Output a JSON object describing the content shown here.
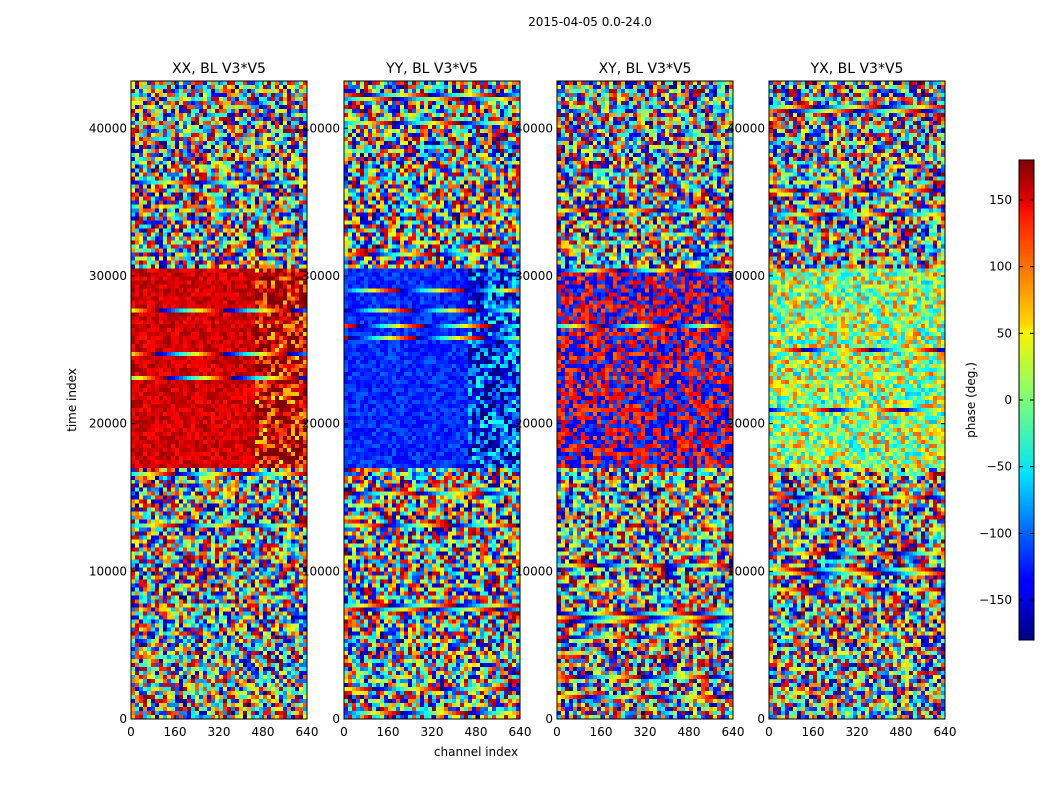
{
  "chart_data": {
    "type": "heatmap",
    "suptitle": "2015-04-05 0.0-24.0",
    "xlabel": "channel index",
    "ylabel": "time index",
    "xlim": [
      0,
      640
    ],
    "ylim": [
      0,
      43200
    ],
    "xticks": [
      0,
      160,
      320,
      480,
      640
    ],
    "xtick_labels": [
      "0",
      "160",
      "320",
      "480",
      "640"
    ],
    "yticks": [
      0,
      10000,
      20000,
      30000,
      40000
    ],
    "ytick_labels": [
      "0",
      "10000",
      "20000",
      "30000",
      "40000"
    ],
    "panels": [
      {
        "id": "xx",
        "title": "XX, BL V3*V5",
        "coherent_phase_deg": 150,
        "coherent_time_ranges": [
          [
            17000,
            30500
          ]
        ]
      },
      {
        "id": "yy",
        "title": "YY, BL V3*V5",
        "coherent_phase_deg": -120,
        "coherent_time_ranges": [
          [
            17000,
            30500
          ]
        ]
      },
      {
        "id": "xy",
        "title": "XY, BL V3*V5",
        "coherent_phase_deg": "mixed",
        "coherent_time_ranges": [
          [
            17000,
            30500
          ]
        ]
      },
      {
        "id": "yx",
        "title": "YX, BL V3*V5",
        "coherent_phase_deg": "mixed",
        "coherent_time_ranges": [
          [
            17000,
            30500
          ]
        ]
      }
    ],
    "colorbar": {
      "label": "phase (deg.)",
      "colormap": "jet",
      "vmin": -180,
      "vmax": 180,
      "ticks": [
        -150,
        -100,
        -50,
        0,
        50,
        100,
        150
      ],
      "tick_labels": [
        "−150",
        "−100",
        "−50",
        "0",
        "50",
        "100",
        "150"
      ]
    }
  }
}
